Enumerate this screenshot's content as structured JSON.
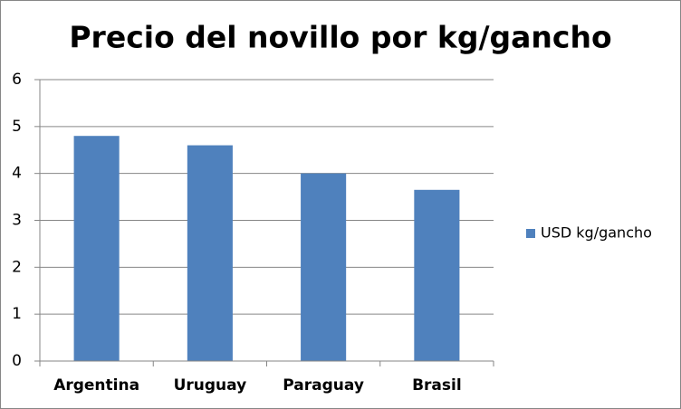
{
  "chart_data": {
    "type": "bar",
    "title": "Precio del novillo por kg/gancho",
    "categories": [
      "Argentina",
      "Uruguay",
      "Paraguay",
      "Brasil"
    ],
    "series": [
      {
        "name": "USD kg/gancho",
        "color": "#4f81bd",
        "values": [
          4.8,
          4.6,
          4.0,
          3.65
        ]
      }
    ],
    "ylim": [
      0,
      6
    ],
    "yticks": [
      0,
      1,
      2,
      3,
      4,
      5,
      6
    ],
    "grid": true,
    "legend": "right"
  }
}
